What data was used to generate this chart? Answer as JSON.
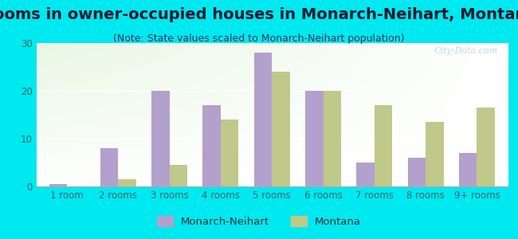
{
  "title": "Rooms in owner-occupied houses in Monarch-Neihart, Montana",
  "subtitle": "(Note: State values scaled to Monarch-Neihart population)",
  "categories": [
    "1 room",
    "2 rooms",
    "3 rooms",
    "4 rooms",
    "5 rooms",
    "6 rooms",
    "7 rooms",
    "8 rooms",
    "9+ rooms"
  ],
  "monarch_values": [
    0.5,
    8,
    20,
    17,
    28,
    20,
    5,
    6,
    7
  ],
  "montana_values": [
    0,
    1.5,
    4.5,
    14,
    24,
    20,
    17,
    13.5,
    16.5
  ],
  "monarch_color": "#b3a0cc",
  "montana_color": "#c0c88a",
  "background_color": "#00e8f0",
  "ylim": [
    0,
    30
  ],
  "yticks": [
    0,
    10,
    20,
    30
  ],
  "bar_width": 0.35,
  "title_fontsize": 14,
  "subtitle_fontsize": 9,
  "tick_fontsize": 8.5,
  "legend_label_1": "Monarch-Neihart",
  "legend_label_2": "Montana",
  "watermark": "City-Data.com"
}
